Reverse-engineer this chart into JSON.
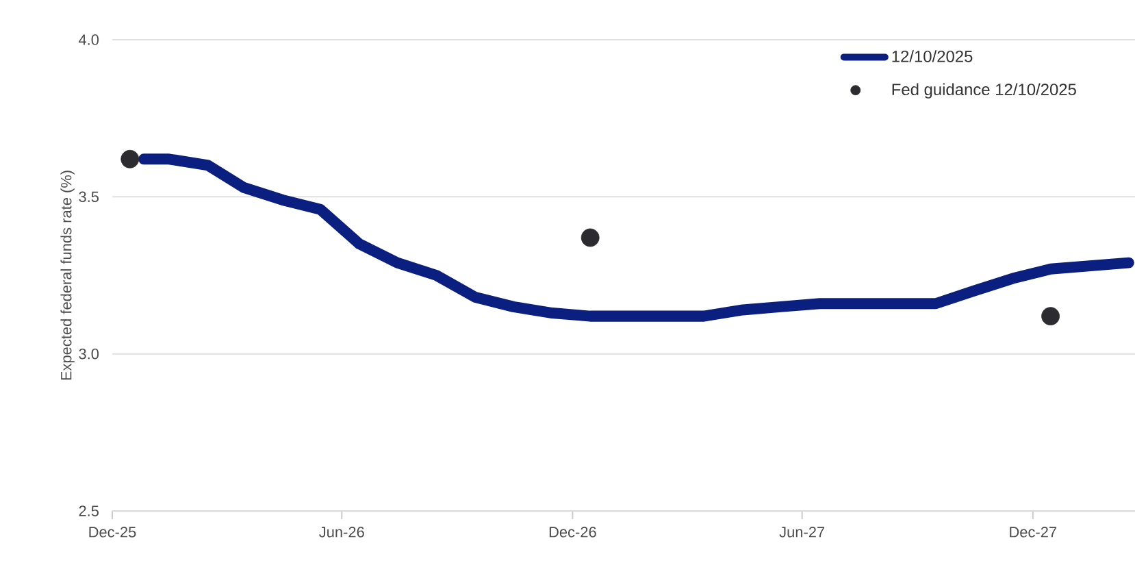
{
  "chart_data": {
    "type": "line",
    "ylabel": "Expected federal funds rate (%)",
    "xlim": [
      "2025-12-01",
      "2028-02-20"
    ],
    "xticks": [
      {
        "value": "2025-12-01",
        "label": "Dec-25"
      },
      {
        "value": "2026-06-01",
        "label": "Jun-26"
      },
      {
        "value": "2026-12-01",
        "label": "Dec-26"
      },
      {
        "value": "2027-06-01",
        "label": "Jun-27"
      },
      {
        "value": "2027-12-01",
        "label": "Dec-27"
      }
    ],
    "ylim": [
      2.5,
      4.0
    ],
    "yticks": [
      {
        "value": 2.5,
        "label": "2.5"
      },
      {
        "value": 3.0,
        "label": "3.0"
      },
      {
        "value": 3.5,
        "label": "3.5"
      },
      {
        "value": 4.0,
        "label": "4.0"
      }
    ],
    "grid": "y",
    "legend": "top right",
    "marker": "circle",
    "series": [
      {
        "name": "12/10/2025",
        "marker": "none",
        "color": "#0b1f80",
        "x": [
          "2025-12-26",
          "2026-01-15",
          "2026-02-15",
          "2026-03-15",
          "2026-04-15",
          "2026-05-15",
          "2026-06-15",
          "2026-07-15",
          "2026-08-15",
          "2026-09-15",
          "2026-10-15",
          "2026-11-15",
          "2026-12-15",
          "2027-01-15",
          "2027-02-15",
          "2027-03-15",
          "2027-04-15",
          "2027-05-15",
          "2027-06-15",
          "2027-07-15",
          "2027-08-15",
          "2027-09-15",
          "2027-10-15",
          "2027-11-15",
          "2027-12-15",
          "2028-01-15",
          "2028-02-15"
        ],
        "values": [
          3.62,
          3.62,
          3.6,
          3.53,
          3.49,
          3.46,
          3.35,
          3.29,
          3.25,
          3.18,
          3.15,
          3.13,
          3.12,
          3.12,
          3.12,
          3.12,
          3.14,
          3.15,
          3.16,
          3.16,
          3.16,
          3.16,
          3.2,
          3.24,
          3.27,
          3.28,
          3.29
        ]
      },
      {
        "name": "Fed guidance 12/10/2025",
        "type": "scatter",
        "color": "#2b2b30",
        "x": [
          "2025-12-15",
          "2026-12-15",
          "2027-12-15"
        ],
        "values": [
          3.62,
          3.37,
          3.12
        ]
      }
    ]
  }
}
